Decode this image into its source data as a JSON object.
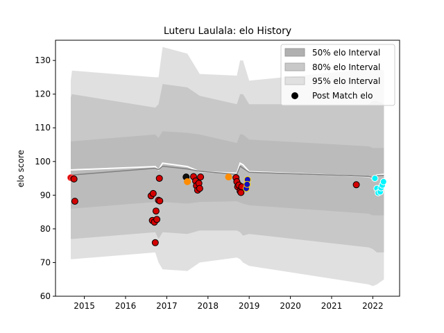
{
  "chart_data": {
    "type": "scatter",
    "title": "Luteru Laulala: elo History",
    "xlabel": "",
    "ylabel": "elo score",
    "xlim": [
      2014.3,
      2022.65
    ],
    "ylim": [
      60,
      136
    ],
    "x_ticks": [
      2015,
      2016,
      2017,
      2018,
      2019,
      2020,
      2021,
      2022
    ],
    "y_ticks": [
      60,
      70,
      80,
      90,
      100,
      110,
      120,
      130
    ],
    "legend": {
      "placement": "top-right",
      "entries": [
        "50% elo Interval",
        "80% elo Interval",
        "95% elo Interval",
        "Post Match elo"
      ]
    },
    "colors": {
      "band50": "#b0b0b0",
      "band80": "#c8c8c8",
      "band95": "#e0e0e0",
      "mean": "#7f7f7f",
      "prior": "#ffffff"
    },
    "bands": {
      "x": [
        2014.67,
        2014.7,
        2016.72,
        2016.8,
        2016.9,
        2017.5,
        2017.8,
        2018.7,
        2018.78,
        2018.85,
        2019.0,
        2021.9,
        2022.0,
        2022.1,
        2022.27
      ],
      "mean": [
        96.0,
        96.0,
        98.0,
        97.6,
        98.6,
        97.8,
        97.1,
        96.2,
        98.6,
        98.0,
        96.8,
        95.6,
        95.2,
        95.8,
        95.9
      ],
      "prior": [
        97.5,
        97.5,
        98.5,
        97.5,
        99.5,
        98.5,
        97.0,
        96.5,
        99.5,
        99.0,
        97.0,
        95.5,
        95.0,
        96.0,
        96.2
      ],
      "p50_lo": [
        86.0,
        86.0,
        88.0,
        87.0,
        88.0,
        87.5,
        88.0,
        88.2,
        87.8,
        87.5,
        87.0,
        84.5,
        84.0,
        84.0,
        84.0
      ],
      "p50_hi": [
        106.0,
        106.0,
        108.0,
        107.0,
        109.0,
        108.5,
        108.0,
        105.5,
        108.0,
        108.0,
        106.5,
        104.5,
        104.0,
        104.0,
        104.0
      ],
      "p80_lo": [
        77.0,
        77.0,
        79.0,
        77.0,
        79.0,
        78.5,
        79.5,
        79.5,
        79.0,
        78.0,
        78.5,
        74.5,
        74.0,
        73.0,
        73.0
      ],
      "p80_hi": [
        119.0,
        120.0,
        116.0,
        117.0,
        123.0,
        122.0,
        119.5,
        117.0,
        120.0,
        120.0,
        117.0,
        117.0,
        118.0,
        118.0,
        117.0
      ],
      "p95_lo": [
        71.0,
        71.0,
        73.0,
        70.0,
        68.0,
        67.5,
        70.0,
        71.5,
        71.0,
        70.0,
        69.0,
        63.5,
        63.0,
        63.5,
        65.0
      ],
      "p95_hi": [
        124.0,
        127.0,
        125.0,
        125.0,
        134.0,
        132.0,
        126.0,
        125.5,
        130.0,
        130.0,
        124.0,
        127.5,
        128.0,
        128.0,
        127.0
      ]
    },
    "series": [
      {
        "name": "Post Match elo",
        "points": [
          {
            "x": 2014.67,
            "y": 95.2,
            "fill": "#d40000",
            "edge": "#ff4d4d"
          },
          {
            "x": 2014.72,
            "y": 95.0,
            "fill": "#d40000",
            "edge": "#ff4d4d"
          },
          {
            "x": 2014.75,
            "y": 94.8,
            "fill": "#d40000",
            "edge": "#000000"
          },
          {
            "x": 2014.77,
            "y": 88.2,
            "fill": "#d40000",
            "edge": "#000000"
          },
          {
            "x": 2016.62,
            "y": 89.8,
            "fill": "#d40000",
            "edge": "#000000"
          },
          {
            "x": 2016.67,
            "y": 90.5,
            "fill": "#d40000",
            "edge": "#000000"
          },
          {
            "x": 2016.65,
            "y": 82.5,
            "fill": "#d40000",
            "edge": "#000000"
          },
          {
            "x": 2016.7,
            "y": 82.0,
            "fill": "#d40000",
            "edge": "#000000"
          },
          {
            "x": 2016.74,
            "y": 85.3,
            "fill": "#d40000",
            "edge": "#000000"
          },
          {
            "x": 2016.76,
            "y": 82.8,
            "fill": "#d40000",
            "edge": "#000000"
          },
          {
            "x": 2016.72,
            "y": 75.9,
            "fill": "#d40000",
            "edge": "#000000"
          },
          {
            "x": 2016.8,
            "y": 88.5,
            "fill": "#d40000",
            "edge": "#000000"
          },
          {
            "x": 2016.83,
            "y": 88.3,
            "fill": "#d40000",
            "edge": "#000000"
          },
          {
            "x": 2016.82,
            "y": 95.0,
            "fill": "#d40000",
            "edge": "#000000"
          },
          {
            "x": 2017.47,
            "y": 95.4,
            "fill": "#111111",
            "edge": "#000000"
          },
          {
            "x": 2017.5,
            "y": 94.0,
            "fill": "#ff8c00",
            "edge": "#ff8c00"
          },
          {
            "x": 2017.65,
            "y": 95.5,
            "fill": "#d40000",
            "edge": "#000000"
          },
          {
            "x": 2017.7,
            "y": 94.2,
            "fill": "#d40000",
            "edge": "#000000"
          },
          {
            "x": 2017.72,
            "y": 92.8,
            "fill": "#d40000",
            "edge": "#000000"
          },
          {
            "x": 2017.75,
            "y": 91.5,
            "fill": "#d40000",
            "edge": "#000000"
          },
          {
            "x": 2017.78,
            "y": 93.5,
            "fill": "#d40000",
            "edge": "#000000"
          },
          {
            "x": 2017.8,
            "y": 92.0,
            "fill": "#d40000",
            "edge": "#000000"
          },
          {
            "x": 2017.82,
            "y": 95.4,
            "fill": "#d40000",
            "edge": "#000000"
          },
          {
            "x": 2018.5,
            "y": 95.4,
            "fill": "#ff8c00",
            "edge": "#ff8c00"
          },
          {
            "x": 2018.68,
            "y": 95.2,
            "fill": "#d40000",
            "edge": "#000000"
          },
          {
            "x": 2018.7,
            "y": 94.0,
            "fill": "#d40000",
            "edge": "#000000"
          },
          {
            "x": 2018.72,
            "y": 92.5,
            "fill": "#d40000",
            "edge": "#000000"
          },
          {
            "x": 2018.75,
            "y": 93.0,
            "fill": "#d40000",
            "edge": "#000000"
          },
          {
            "x": 2018.78,
            "y": 91.2,
            "fill": "#d40000",
            "edge": "#000000"
          },
          {
            "x": 2018.8,
            "y": 90.8,
            "fill": "#d40000",
            "edge": "#000000"
          },
          {
            "x": 2018.82,
            "y": 92.5,
            "fill": "#d40000",
            "edge": "#000000"
          },
          {
            "x": 2018.93,
            "y": 92.0,
            "fill": "#1010c0",
            "edge": "#ffd700"
          },
          {
            "x": 2018.96,
            "y": 94.6,
            "fill": "#1010c0",
            "edge": "#ffd700"
          },
          {
            "x": 2018.95,
            "y": 93.2,
            "fill": "#1010c0",
            "edge": "#ffd700"
          },
          {
            "x": 2021.6,
            "y": 93.1,
            "fill": "#d40000",
            "edge": "#000000"
          },
          {
            "x": 2022.05,
            "y": 95.0,
            "fill": "#00f5ff",
            "edge": "#ffffff"
          },
          {
            "x": 2022.1,
            "y": 92.0,
            "fill": "#00f5ff",
            "edge": "#ffffff"
          },
          {
            "x": 2022.13,
            "y": 90.7,
            "fill": "#00f5ff",
            "edge": "#ffffff"
          },
          {
            "x": 2022.18,
            "y": 91.0,
            "fill": "#00f5ff",
            "edge": "#ffffff"
          },
          {
            "x": 2022.2,
            "y": 92.2,
            "fill": "#00f5ff",
            "edge": "#ffffff"
          },
          {
            "x": 2022.23,
            "y": 93.0,
            "fill": "#00f5ff",
            "edge": "#ffffff"
          },
          {
            "x": 2022.26,
            "y": 94.0,
            "fill": "#00f5ff",
            "edge": "#ffffff"
          }
        ]
      }
    ]
  }
}
